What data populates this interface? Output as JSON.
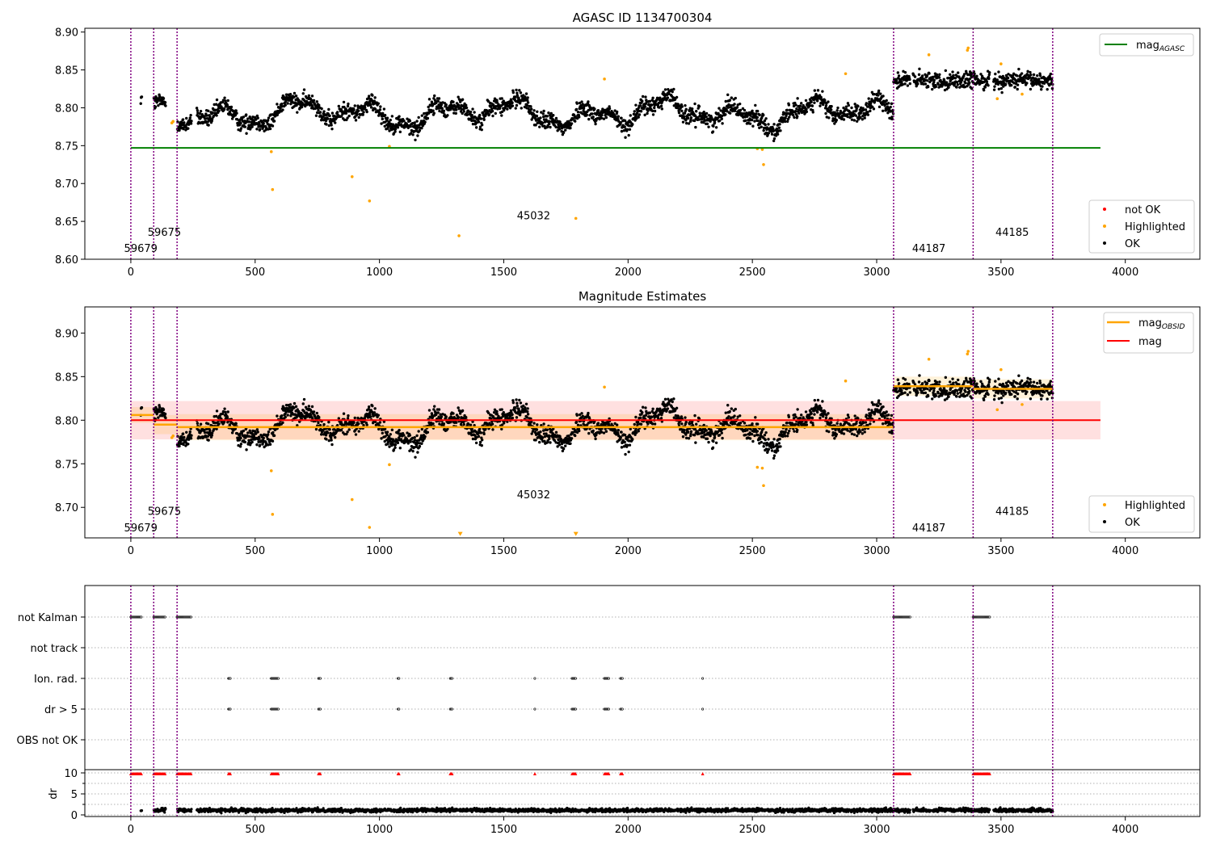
{
  "chart_data": [
    {
      "type": "scatter",
      "title": "AGASC ID 1134700304",
      "xlim": [
        -185,
        4300
      ],
      "ylim": [
        8.6,
        8.905
      ],
      "yticks": [
        8.6,
        8.65,
        8.7,
        8.75,
        8.8,
        8.85,
        8.9
      ],
      "ytick_labels": [
        "8.60",
        "8.65",
        "8.70",
        "8.75",
        "8.80",
        "8.85",
        "8.90"
      ],
      "xticks": [
        0,
        500,
        1000,
        1500,
        2000,
        2500,
        3000,
        3500,
        4000
      ],
      "xtick_labels": [
        "0",
        "500",
        "1000",
        "1500",
        "2000",
        "2500",
        "3000",
        "3500",
        "4000"
      ],
      "lines": [
        {
          "name": "mag_AGASC",
          "label_main": "mag",
          "label_sub": "AGASC",
          "color": "#008000",
          "y": 8.747,
          "x": [
            0,
            3900
          ]
        }
      ],
      "legend_lines_position": "upper right",
      "legend_points_position": "lower right",
      "legend_points": [
        {
          "name": "not OK",
          "color": "#ff0000"
        },
        {
          "name": "Highlighted",
          "color": "#ffa500"
        },
        {
          "name": "OK",
          "color": "#000000"
        }
      ],
      "obsid_boundaries": [
        0,
        92,
        186,
        3068,
        3388,
        3708
      ],
      "obsid_labels": [
        {
          "text": "59679",
          "x": 40,
          "y": 8.615
        },
        {
          "text": "59675",
          "x": 135,
          "y": 8.636
        },
        {
          "text": "45032",
          "x": 1620,
          "y": 8.658
        },
        {
          "text": "44187",
          "x": 3210,
          "y": 8.615
        },
        {
          "text": "44185",
          "x": 3545,
          "y": 8.636
        }
      ],
      "highlighted_points": [
        [
          165,
          8.78
        ],
        [
          170,
          8.782
        ],
        [
          565,
          8.742
        ],
        [
          570,
          8.692
        ],
        [
          890,
          8.709
        ],
        [
          960,
          8.677
        ],
        [
          1040,
          8.749
        ],
        [
          1320,
          8.631
        ],
        [
          1790,
          8.654
        ],
        [
          1905,
          8.838
        ],
        [
          2520,
          8.746
        ],
        [
          2540,
          8.745
        ],
        [
          2545,
          8.725
        ],
        [
          2875,
          8.845
        ],
        [
          3210,
          8.87
        ],
        [
          3365,
          8.876
        ],
        [
          3368,
          8.879
        ],
        [
          3485,
          8.812
        ],
        [
          3500,
          8.858
        ],
        [
          3585,
          8.818
        ]
      ]
    },
    {
      "type": "scatter",
      "title": "Magnitude Estimates",
      "xlim": [
        -185,
        4300
      ],
      "ylim": [
        8.665,
        8.93
      ],
      "yticks": [
        8.7,
        8.75,
        8.8,
        8.85,
        8.9
      ],
      "ytick_labels": [
        "8.70",
        "8.75",
        "8.80",
        "8.85",
        "8.90"
      ],
      "xticks": [
        0,
        500,
        1000,
        1500,
        2000,
        2500,
        3000,
        3500,
        4000
      ],
      "xtick_labels": [
        "0",
        "500",
        "1000",
        "1500",
        "2000",
        "2500",
        "3000",
        "3500",
        "4000"
      ],
      "lines": [
        {
          "name": "mag_OBSID",
          "label_main": "mag",
          "label_sub": "OBSID",
          "color": "#ffa500"
        },
        {
          "name": "mag",
          "label_main": "mag",
          "label_sub": "",
          "color": "#ff0000",
          "y": 8.8,
          "band": [
            8.778,
            8.822
          ],
          "x": [
            0,
            3900
          ]
        }
      ],
      "obsid_mag_segments": [
        {
          "x": [
            0,
            92
          ],
          "y": 8.806,
          "band": [
            8.797,
            8.815
          ]
        },
        {
          "x": [
            92,
            186
          ],
          "y": 8.795,
          "band": [
            8.784,
            8.806
          ]
        },
        {
          "x": [
            186,
            3068
          ],
          "y": 8.792,
          "band": [
            8.777,
            8.807
          ]
        },
        {
          "x": [
            3068,
            3388
          ],
          "y": 8.839,
          "band": [
            8.828,
            8.85
          ]
        },
        {
          "x": [
            3388,
            3708
          ],
          "y": 8.836,
          "band": [
            8.825,
            8.847
          ]
        }
      ],
      "legend_lines_position": "upper right",
      "legend_points_position": "lower right",
      "legend_points": [
        {
          "name": "Highlighted",
          "color": "#ffa500"
        },
        {
          "name": "OK",
          "color": "#000000"
        }
      ],
      "obsid_labels": [
        {
          "text": "59679",
          "x": 40,
          "y": 8.677
        },
        {
          "text": "59675",
          "x": 135,
          "y": 8.696
        },
        {
          "text": "45032",
          "x": 1620,
          "y": 8.715
        },
        {
          "text": "44187",
          "x": 3210,
          "y": 8.677
        },
        {
          "text": "44185",
          "x": 3545,
          "y": 8.696
        }
      ],
      "off_scale_markers": [
        [
          1325,
          8.669
        ],
        [
          1790,
          8.669
        ]
      ],
      "highlighted_points": [
        [
          165,
          8.78
        ],
        [
          170,
          8.782
        ],
        [
          565,
          8.742
        ],
        [
          570,
          8.692
        ],
        [
          890,
          8.709
        ],
        [
          960,
          8.677
        ],
        [
          1040,
          8.749
        ],
        [
          1905,
          8.838
        ],
        [
          2520,
          8.746
        ],
        [
          2540,
          8.745
        ],
        [
          2545,
          8.725
        ],
        [
          2875,
          8.845
        ],
        [
          3210,
          8.87
        ],
        [
          3365,
          8.876
        ],
        [
          3368,
          8.879
        ],
        [
          3485,
          8.812
        ],
        [
          3500,
          8.858
        ],
        [
          3585,
          8.818
        ]
      ]
    },
    {
      "type": "scatter",
      "title": "",
      "xlim": [
        -185,
        4300
      ],
      "categories": [
        "not Kalman",
        "not track",
        "Ion. rad.",
        "dr > 5",
        "OBS not OK"
      ],
      "flag_intervals": {
        "not Kalman": [
          [
            0,
            45
          ],
          [
            92,
            140
          ],
          [
            186,
            245
          ],
          [
            3068,
            3135
          ],
          [
            3388,
            3455
          ]
        ],
        "not track": [],
        "Ion. rad.": [
          [
            393,
            400
          ],
          [
            565,
            595
          ],
          [
            755,
            763
          ],
          [
            1075,
            1080
          ],
          [
            1285,
            1292
          ],
          [
            1625,
            1628
          ],
          [
            1775,
            1790
          ],
          [
            1905,
            1925
          ],
          [
            1970,
            1978
          ],
          [
            2300,
            2303
          ]
        ],
        "dr > 5": [
          [
            393,
            400
          ],
          [
            565,
            595
          ],
          [
            755,
            763
          ],
          [
            1075,
            1080
          ],
          [
            1285,
            1292
          ],
          [
            1625,
            1628
          ],
          [
            1775,
            1790
          ],
          [
            1905,
            1925
          ],
          [
            1970,
            1978
          ],
          [
            2300,
            2303
          ]
        ],
        "OBS not OK": []
      },
      "dr_ylim": [
        0,
        10
      ],
      "dr_yticks": [
        0,
        5,
        10
      ],
      "dr_ytick_labels": [
        "0",
        "5",
        "10"
      ],
      "dr_ylabel": "dr",
      "dr_threshold": 10,
      "xticks": [
        0,
        500,
        1000,
        1500,
        2000,
        2500,
        3000,
        3500,
        4000
      ],
      "xtick_labels": [
        "0",
        "500",
        "1000",
        "1500",
        "2000",
        "2500",
        "3000",
        "3500",
        "4000"
      ]
    }
  ],
  "colors": {
    "ok": "#000000",
    "highlighted": "#ffa500",
    "not_ok": "#ff0000",
    "boundary": "#800080",
    "grid": "#b0b0b0"
  }
}
